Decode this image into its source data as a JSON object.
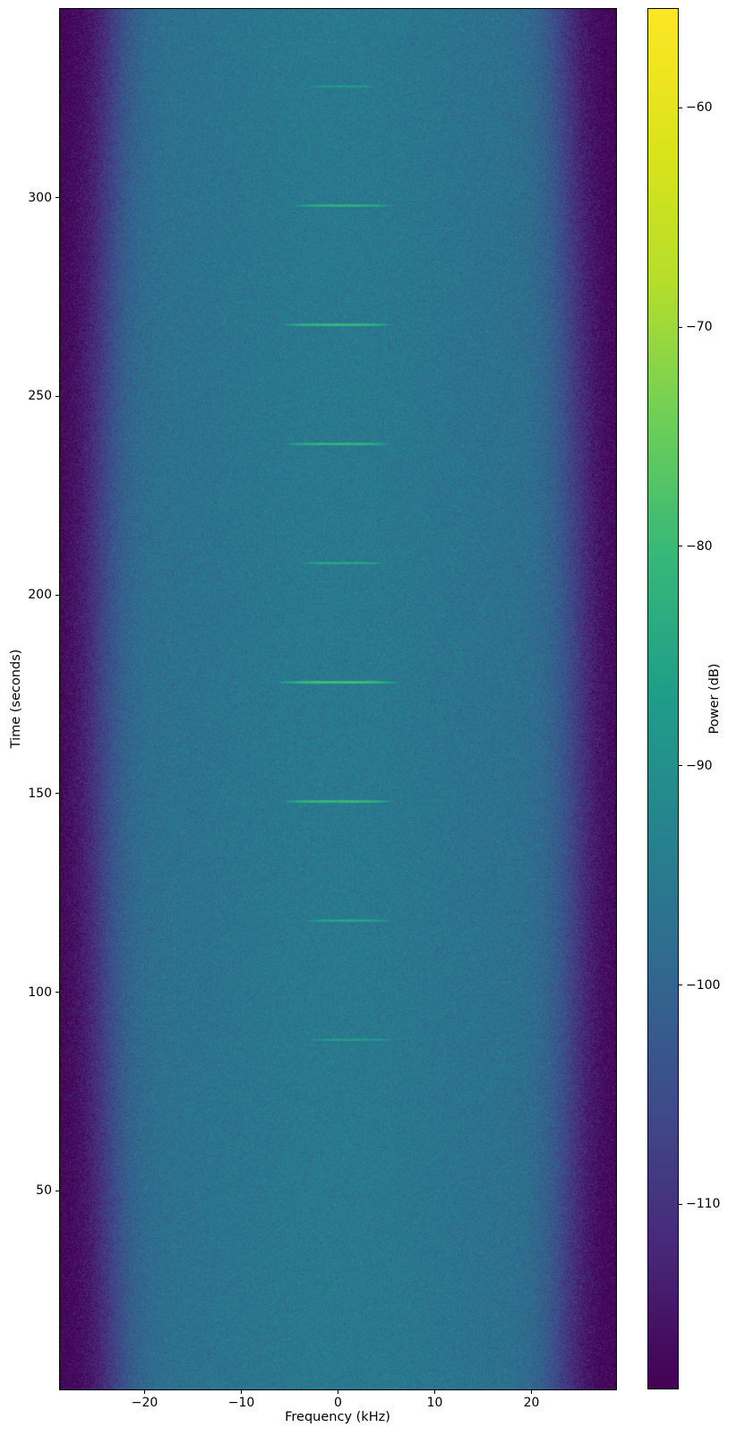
{
  "figure": {
    "background_color": "#ffffff",
    "text_color": "#000000"
  },
  "chart_data": {
    "type": "heatmap",
    "subtype": "spectrogram",
    "title": "",
    "xlabel": "Frequency (kHz)",
    "ylabel": "Time (seconds)",
    "colorbar_label": "Power (dB)",
    "x_range_khz": [
      -28.75,
      28.75
    ],
    "y_range_s": [
      0,
      347.5
    ],
    "x_ticks": [
      {
        "value": -20,
        "label": "−20"
      },
      {
        "value": -10,
        "label": "−10"
      },
      {
        "value": 0,
        "label": "0"
      },
      {
        "value": 10,
        "label": "10"
      },
      {
        "value": 20,
        "label": "20"
      }
    ],
    "y_ticks": [
      {
        "value": 300,
        "label": "300"
      },
      {
        "value": 250,
        "label": "250"
      },
      {
        "value": 200,
        "label": "200"
      },
      {
        "value": 150,
        "label": "150"
      },
      {
        "value": 100,
        "label": "100"
      },
      {
        "value": 50,
        "label": "50"
      }
    ],
    "colorbar": {
      "colormap": "viridis",
      "vmin_db": -118.4,
      "vmax_db": -55.5,
      "ticks": [
        {
          "value": -60,
          "label": "−60"
        },
        {
          "value": -70,
          "label": "−70"
        },
        {
          "value": -80,
          "label": "−80"
        },
        {
          "value": -90,
          "label": "−90"
        },
        {
          "value": -100,
          "label": "−100"
        },
        {
          "value": -110,
          "label": "−110"
        }
      ]
    },
    "viridis_stops": [
      "#440154",
      "#482878",
      "#3e4a89",
      "#31688e",
      "#26828e",
      "#1f9e89",
      "#35b779",
      "#6ece58",
      "#b5de2b",
      "#dce319",
      "#fde725"
    ],
    "noise_model": {
      "plateau_db": -97.2,
      "edge_db": -118.5,
      "edge_center_khz": 23.2,
      "edge_bow_khz": 1.5,
      "edge_width_khz": 1.55,
      "center_bump_db": 1.8,
      "center_bump_sigma_khz": 9,
      "noise_sigma_db": 2.2,
      "seed": 42
    },
    "streaks": [
      {
        "time_s": 328,
        "peak_db": -84.5,
        "half_width_khz": 3.5,
        "center_khz": 0.5
      },
      {
        "time_s": 298,
        "peak_db": -79.0,
        "half_width_khz": 4.5,
        "center_khz": 0.5
      },
      {
        "time_s": 268,
        "peak_db": -77.0,
        "half_width_khz": 5.0,
        "center_khz": 0.0
      },
      {
        "time_s": 238,
        "peak_db": -78.0,
        "half_width_khz": 4.8,
        "center_khz": 0.0
      },
      {
        "time_s": 208,
        "peak_db": -81.5,
        "half_width_khz": 4.2,
        "center_khz": 0.5
      },
      {
        "time_s": 178,
        "peak_db": -75.5,
        "half_width_khz": 5.3,
        "center_khz": 0.0
      },
      {
        "time_s": 148,
        "peak_db": -77.0,
        "half_width_khz": 5.0,
        "center_khz": 0.0
      },
      {
        "time_s": 118,
        "peak_db": -81.5,
        "half_width_khz": 4.2,
        "center_khz": 1.0
      },
      {
        "time_s": 88,
        "peak_db": -84.0,
        "half_width_khz": 4.5,
        "center_khz": 1.5
      }
    ],
    "streak_time_sigma_s": 0.16
  }
}
